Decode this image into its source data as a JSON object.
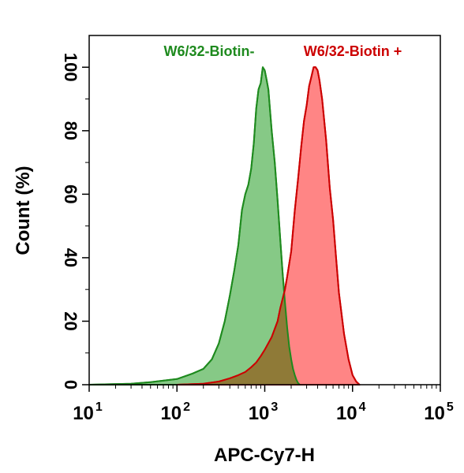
{
  "chart_data": {
    "type": "area",
    "title": "",
    "xlabel": "APC-Cy7-H",
    "ylabel": "Count  (%)",
    "x_scale": "log",
    "xlim": [
      10,
      100000
    ],
    "ylim": [
      0,
      110
    ],
    "x_ticks": [
      {
        "value": 10,
        "base": "10",
        "exp": "1"
      },
      {
        "value": 100,
        "base": "10",
        "exp": "2"
      },
      {
        "value": 1000,
        "base": "10",
        "exp": "3"
      },
      {
        "value": 10000,
        "base": "10",
        "exp": "4"
      },
      {
        "value": 100000,
        "base": "10",
        "exp": "5"
      }
    ],
    "y_ticks": [
      0,
      20,
      40,
      60,
      80,
      100
    ],
    "grid": false,
    "legend_placement": "top",
    "series": [
      {
        "name": "W6/32-Biotin-",
        "stroke": "#1e8a1e",
        "fill": "#7fc67f",
        "x": [
          10,
          30,
          50,
          100,
          150,
          200,
          250,
          300,
          350,
          400,
          450,
          500,
          550,
          600,
          650,
          700,
          750,
          800,
          850,
          900,
          950,
          1000,
          1050,
          1100,
          1200,
          1300,
          1400,
          1500,
          1600,
          1700,
          1800,
          1900,
          2000,
          2100,
          2200,
          2300,
          2400,
          2500
        ],
        "y": [
          0,
          0.3,
          0.8,
          1.8,
          3.5,
          5,
          8,
          13,
          20,
          28,
          36,
          44,
          55,
          60,
          63,
          68,
          76,
          87,
          93,
          95,
          100,
          99,
          96,
          93,
          80,
          70,
          58,
          46,
          35,
          26,
          18,
          12,
          8,
          5,
          3,
          1.5,
          0.5,
          0
        ]
      },
      {
        "name": "W6/32-Biotin +",
        "stroke": "#cc0000",
        "fill": "#ff6666",
        "x": [
          100,
          200,
          300,
          400,
          500,
          600,
          700,
          800,
          900,
          1000,
          1200,
          1400,
          1500,
          1700,
          1800,
          2000,
          2200,
          2400,
          2600,
          2800,
          3000,
          3200,
          3400,
          3600,
          3800,
          4000,
          4200,
          4500,
          5000,
          5500,
          6000,
          6500,
          7000,
          8000,
          9000,
          10000,
          11000,
          12000
        ],
        "y": [
          0,
          0.3,
          1,
          2,
          3,
          4,
          5.5,
          7,
          9,
          11,
          15,
          20,
          24,
          30,
          34,
          42,
          55,
          65,
          75,
          83,
          88,
          94,
          97,
          100,
          100,
          99,
          96,
          90,
          77,
          62,
          52,
          40,
          29,
          16,
          8,
          3,
          1,
          0
        ]
      }
    ]
  }
}
